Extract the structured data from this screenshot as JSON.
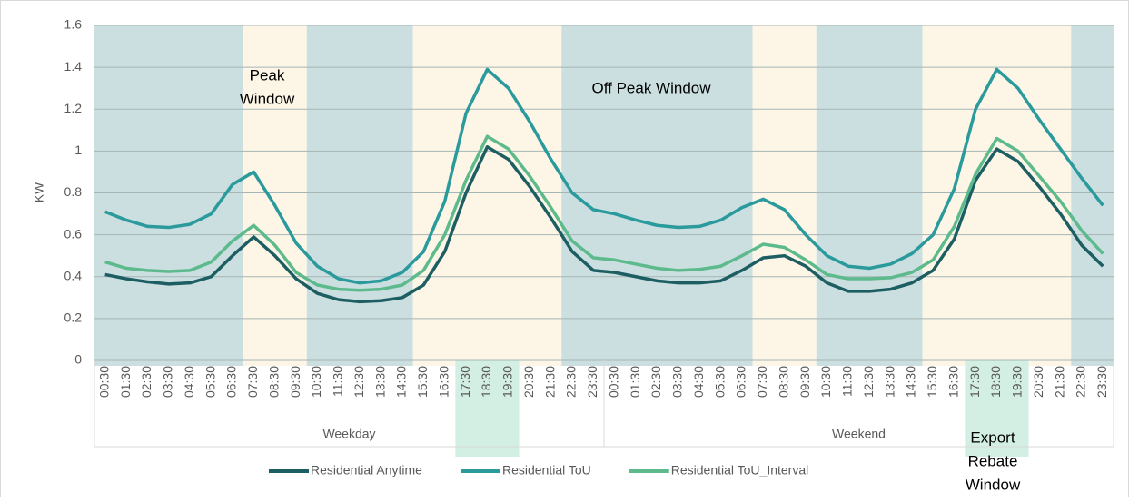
{
  "chart_data": {
    "type": "line",
    "ylabel": "KW",
    "ylim": [
      0,
      1.6
    ],
    "yticks": [
      0,
      0.2,
      0.4,
      0.6,
      0.8,
      1,
      1.2,
      1.4,
      1.6
    ],
    "grid": true,
    "categories": [
      "00:30",
      "01:30",
      "02:30",
      "03:30",
      "04:30",
      "05:30",
      "06:30",
      "07:30",
      "08:30",
      "09:30",
      "10:30",
      "11:30",
      "12:30",
      "13:30",
      "14:30",
      "15:30",
      "16:30",
      "17:30",
      "18:30",
      "19:30",
      "20:30",
      "21:30",
      "22:30",
      "23:30",
      "00:30",
      "01:30",
      "02:30",
      "03:30",
      "04:30",
      "05:30",
      "06:30",
      "07:30",
      "08:30",
      "09:30",
      "10:30",
      "11:30",
      "12:30",
      "13:30",
      "14:30",
      "15:30",
      "16:30",
      "17:30",
      "18:30",
      "19:30",
      "20:30",
      "21:30",
      "22:30",
      "23:30"
    ],
    "groups": [
      "Weekday",
      "Weekend"
    ],
    "legend": "bottom",
    "annotations": [
      [
        "Peak",
        "Window"
      ],
      [
        "Off Peak Window"
      ],
      [
        "Export",
        "Rebate",
        "Window"
      ]
    ],
    "series": [
      {
        "name": "Residential Anytime",
        "color": "#1d5e63",
        "values": [
          0.41,
          0.39,
          0.375,
          0.365,
          0.37,
          0.4,
          0.5,
          0.59,
          0.5,
          0.39,
          0.32,
          0.29,
          0.28,
          0.285,
          0.3,
          0.36,
          0.52,
          0.8,
          1.02,
          0.96,
          0.83,
          0.68,
          0.52,
          0.43,
          0.42,
          0.4,
          0.38,
          0.37,
          0.37,
          0.38,
          0.43,
          0.49,
          0.5,
          0.45,
          0.37,
          0.33,
          0.33,
          0.34,
          0.37,
          0.43,
          0.58,
          0.86,
          1.01,
          0.95,
          0.83,
          0.7,
          0.55,
          0.45
        ]
      },
      {
        "name": "Residential ToU",
        "color": "#2a9a9c",
        "values": [
          0.71,
          0.67,
          0.64,
          0.635,
          0.65,
          0.7,
          0.84,
          0.9,
          0.74,
          0.56,
          0.45,
          0.39,
          0.37,
          0.38,
          0.42,
          0.52,
          0.76,
          1.18,
          1.39,
          1.3,
          1.14,
          0.96,
          0.8,
          0.72,
          0.7,
          0.67,
          0.645,
          0.635,
          0.64,
          0.67,
          0.73,
          0.77,
          0.72,
          0.6,
          0.5,
          0.45,
          0.44,
          0.46,
          0.51,
          0.6,
          0.82,
          1.2,
          1.39,
          1.3,
          1.15,
          1.01,
          0.87,
          0.74
        ]
      },
      {
        "name": "Residential ToU_Interval",
        "color": "#5dba8c",
        "values": [
          0.47,
          0.44,
          0.43,
          0.425,
          0.43,
          0.47,
          0.57,
          0.645,
          0.55,
          0.42,
          0.36,
          0.34,
          0.335,
          0.34,
          0.36,
          0.43,
          0.6,
          0.86,
          1.07,
          1.01,
          0.88,
          0.73,
          0.57,
          0.49,
          0.48,
          0.46,
          0.44,
          0.43,
          0.435,
          0.45,
          0.5,
          0.555,
          0.54,
          0.48,
          0.41,
          0.39,
          0.39,
          0.395,
          0.42,
          0.48,
          0.64,
          0.89,
          1.06,
          1.0,
          0.88,
          0.76,
          0.62,
          0.51
        ]
      }
    ]
  }
}
